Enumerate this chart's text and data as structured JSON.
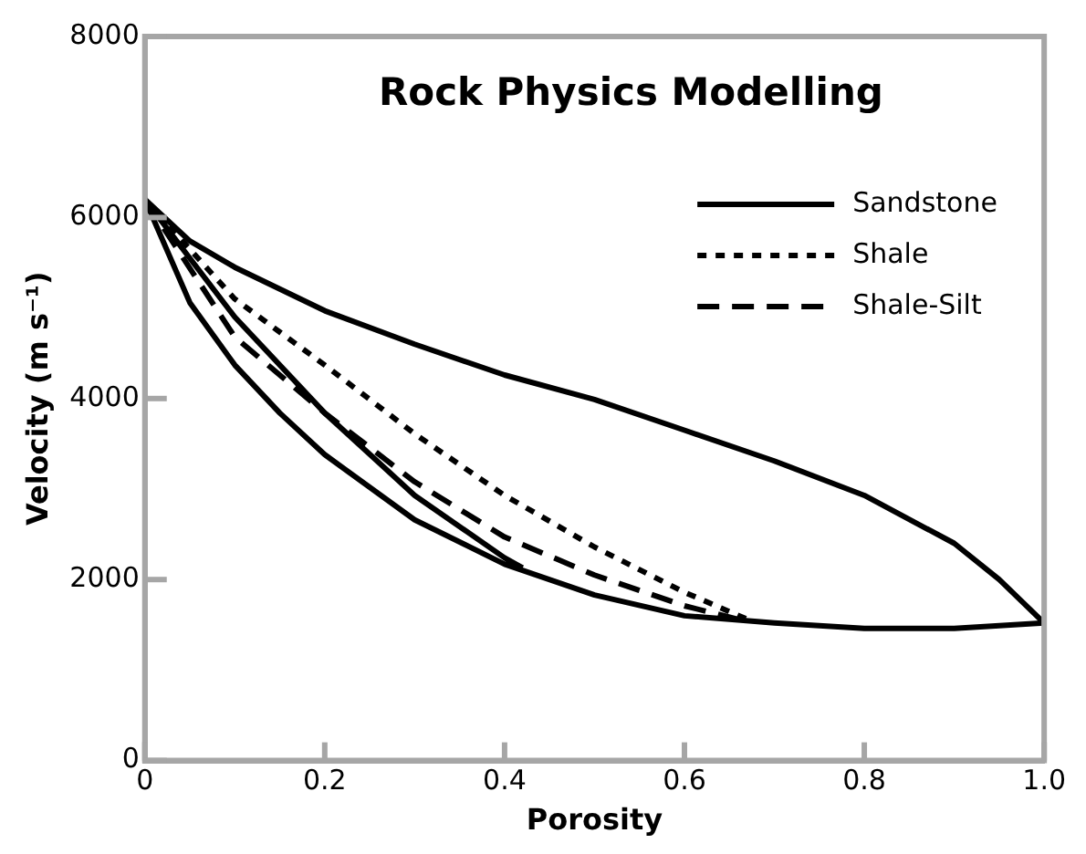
{
  "chart_data": {
    "type": "line",
    "title": "Rock Physics Modelling",
    "xlabel": "Porosity",
    "ylabel": "Velocity (m s⁻¹)",
    "xlim": [
      0,
      1
    ],
    "ylim": [
      0,
      8000
    ],
    "xticks": [
      0,
      0.2,
      0.4,
      0.6,
      0.8,
      {
        "value": 1,
        "label": "1.0"
      }
    ],
    "yticks": [
      0,
      2000,
      4000,
      6000,
      8000
    ],
    "grid": false,
    "legend": "top right",
    "marker": "none",
    "series": [
      {
        "name": "Sandstone",
        "color": "#000000",
        "line_style": "solid",
        "x": [
          0,
          0.05,
          0.1,
          0.2,
          0.3,
          0.4,
          0.5,
          0.6,
          0.7,
          0.8,
          0.9,
          0.95,
          1,
          0.9,
          0.8,
          0.7,
          0.6,
          0.5,
          0.4,
          0.3,
          0.2,
          0.15,
          0.1,
          0.05,
          0,
          0.1,
          0.2,
          0.3,
          0.4,
          0.42
        ],
        "values": [
          6200,
          5740,
          5450,
          4970,
          4600,
          4260,
          3990,
          3650,
          3310,
          2930,
          2400,
          2000,
          1520,
          1460,
          1460,
          1520,
          1600,
          1830,
          2170,
          2660,
          3380,
          3840,
          4370,
          5060,
          6200,
          4900,
          3840,
          2930,
          2240,
          2130
        ]
      },
      {
        "name": "Shale",
        "color": "#000000",
        "line_style": "dotted",
        "x": [
          0,
          0.1,
          0.2,
          0.3,
          0.4,
          0.5,
          0.6,
          0.67
        ],
        "values": [
          6200,
          5100,
          4370,
          3610,
          2930,
          2360,
          1860,
          1560
        ]
      },
      {
        "name": "Shale-Silt",
        "color": "#000000",
        "line_style": "dashed",
        "x": [
          0,
          0.1,
          0.2,
          0.3,
          0.4,
          0.5,
          0.6,
          0.66
        ],
        "values": [
          6200,
          4680,
          3840,
          3080,
          2470,
          2050,
          1710,
          1560
        ]
      }
    ]
  }
}
